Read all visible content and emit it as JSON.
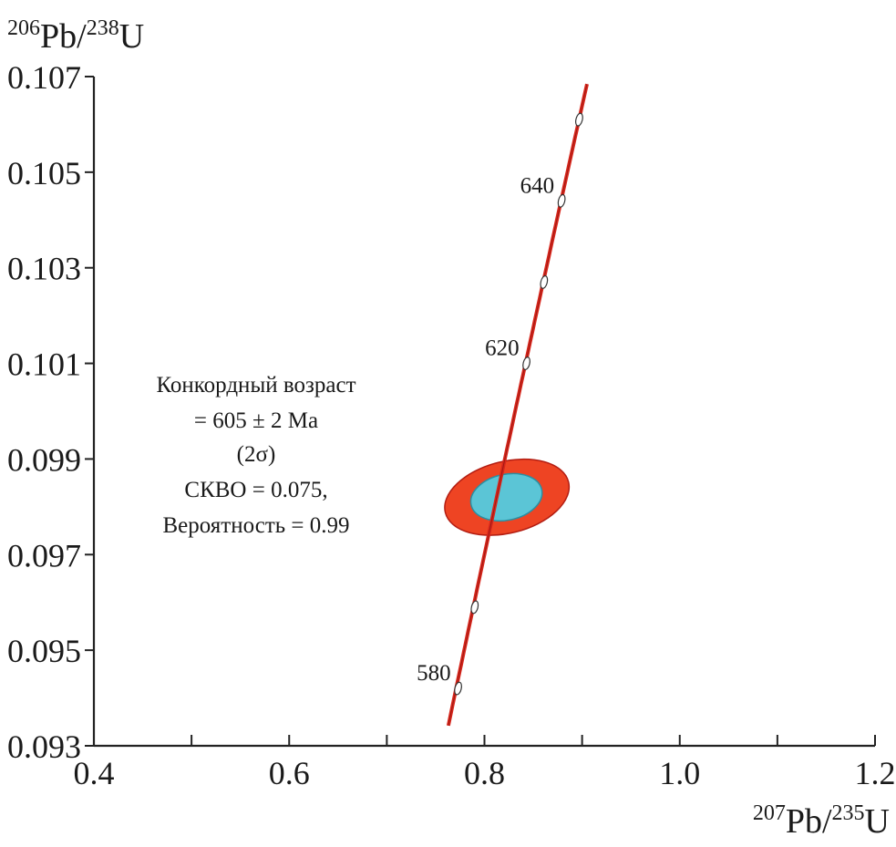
{
  "chart_data": {
    "type": "scatter",
    "subtype": "U-Pb concordia diagram",
    "xlabel": {
      "sup": "207",
      "main": "Pb/",
      "sup2": "235",
      "main2": "U"
    },
    "ylabel": {
      "sup": "206",
      "main": "Pb/",
      "sup2": "238",
      "main2": "U"
    },
    "xlim": [
      0.4,
      1.2
    ],
    "ylim": [
      0.093,
      0.107
    ],
    "xticks": [
      0.4,
      0.6,
      0.8,
      1.0,
      1.2
    ],
    "xtick_labels": [
      "0.4",
      "0.6",
      "0.8",
      "1.0",
      "1.2"
    ],
    "xminor": [
      0.5,
      0.7,
      0.9,
      1.1
    ],
    "yticks": [
      0.093,
      0.095,
      0.097,
      0.099,
      0.101,
      0.103,
      0.105,
      0.107
    ],
    "ytick_labels": [
      "0.093",
      "0.095",
      "0.097",
      "0.099",
      "0.101",
      "0.103",
      "0.105",
      "0.107"
    ],
    "grid": false,
    "concordia": {
      "color": "#d8261c",
      "x_range": [
        0.763,
        0.905
      ],
      "age_markers": [
        {
          "age": 580,
          "x": 0.773,
          "y": 0.0942,
          "label": "580"
        },
        {
          "age": 590,
          "x": 0.79,
          "y": 0.0959
        },
        {
          "age": 620,
          "x": 0.843,
          "y": 0.101,
          "label": "620"
        },
        {
          "age": 630,
          "x": 0.861,
          "y": 0.1027
        },
        {
          "age": 640,
          "x": 0.879,
          "y": 0.1044,
          "label": "640"
        },
        {
          "age": 650,
          "x": 0.897,
          "y": 0.1061
        }
      ]
    },
    "error_ellipses": [
      {
        "name": "2σ",
        "cx": 0.823,
        "cy": 0.0982,
        "rx": 0.065,
        "ry": 0.00075,
        "rotation_deg": -14,
        "color": "#ee4423"
      },
      {
        "name": "1σ",
        "cx": 0.8225,
        "cy": 0.0982,
        "rx": 0.037,
        "ry": 0.00048,
        "rotation_deg": -12,
        "color": "#5bc5d6"
      }
    ],
    "annotation": [
      "Конкордный возраст",
      "= 605 ± 2 Ma",
      "(2σ)",
      "СКВО = 0.075,",
      "Вероятность = 0.99"
    ]
  }
}
